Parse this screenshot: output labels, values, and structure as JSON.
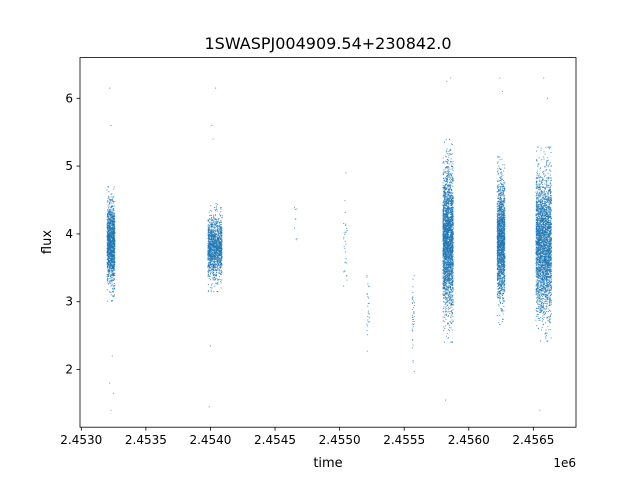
{
  "chart_data": {
    "type": "scatter",
    "title": "1SWASPJ004909.54+230842.0",
    "xlabel": "time",
    "ylabel": "flux",
    "x_offset_label": "1e6",
    "xlim": [
      2.45299,
      2.45683
    ],
    "ylim": [
      1.15,
      6.6
    ],
    "x_ticks": [
      2.453,
      2.4535,
      2.454,
      2.4545,
      2.455,
      2.4555,
      2.456,
      2.4565
    ],
    "x_tick_labels": [
      "2.4530",
      "2.4535",
      "2.4540",
      "2.4545",
      "2.4550",
      "2.4555",
      "2.4560",
      "2.4565"
    ],
    "y_ticks": [
      2,
      3,
      4,
      5,
      6
    ],
    "y_tick_labels": [
      "2",
      "3",
      "4",
      "5",
      "6"
    ],
    "grid": false,
    "marker_color": "#1f77b4",
    "clusters": [
      {
        "x_min": 2.4532,
        "x_max": 2.45326,
        "flux_center": 3.85,
        "flux_spread": 0.65,
        "points": 1400,
        "outliers": [
          [
            2.45322,
            6.15
          ],
          [
            2.45323,
            5.6
          ],
          [
            2.45324,
            2.2
          ],
          [
            2.45322,
            1.8
          ],
          [
            2.45323,
            1.4
          ],
          [
            2.45325,
            1.65
          ]
        ]
      },
      {
        "x_min": 2.45398,
        "x_max": 2.45409,
        "flux_center": 3.8,
        "flux_spread": 0.5,
        "points": 1400,
        "outliers": [
          [
            2.45401,
            5.6
          ],
          [
            2.45402,
            5.4
          ],
          [
            2.45404,
            6.15
          ],
          [
            2.454,
            2.35
          ],
          [
            2.45399,
            1.45
          ]
        ]
      },
      {
        "x_min": 2.45465,
        "x_max": 2.45467,
        "flux_center": 4.2,
        "flux_spread": 0.4,
        "points": 8,
        "outliers": []
      },
      {
        "x_min": 2.45503,
        "x_max": 2.45506,
        "flux_center": 3.6,
        "flux_spread": 1.0,
        "points": 30,
        "outliers": []
      },
      {
        "x_min": 2.45521,
        "x_max": 2.45523,
        "flux_center": 2.95,
        "flux_spread": 0.6,
        "points": 25,
        "outliers": []
      },
      {
        "x_min": 2.45556,
        "x_max": 2.45558,
        "flux_center": 2.75,
        "flux_spread": 0.8,
        "points": 40,
        "outliers": []
      },
      {
        "x_min": 2.4558,
        "x_max": 2.45588,
        "flux_center": 3.9,
        "flux_spread": 1.15,
        "points": 2600,
        "outliers": [
          [
            2.45583,
            6.25
          ],
          [
            2.45586,
            6.3
          ],
          [
            2.45582,
            1.55
          ]
        ]
      },
      {
        "x_min": 2.45622,
        "x_max": 2.45628,
        "flux_center": 3.9,
        "flux_spread": 0.95,
        "points": 1800,
        "outliers": [
          [
            2.45624,
            6.3
          ],
          [
            2.45626,
            6.1
          ]
        ]
      },
      {
        "x_min": 2.45652,
        "x_max": 2.45664,
        "flux_center": 3.85,
        "flux_spread": 1.1,
        "points": 3000,
        "outliers": [
          [
            2.45658,
            6.3
          ],
          [
            2.45655,
            1.4
          ],
          [
            2.45661,
            6.0
          ]
        ]
      }
    ]
  }
}
